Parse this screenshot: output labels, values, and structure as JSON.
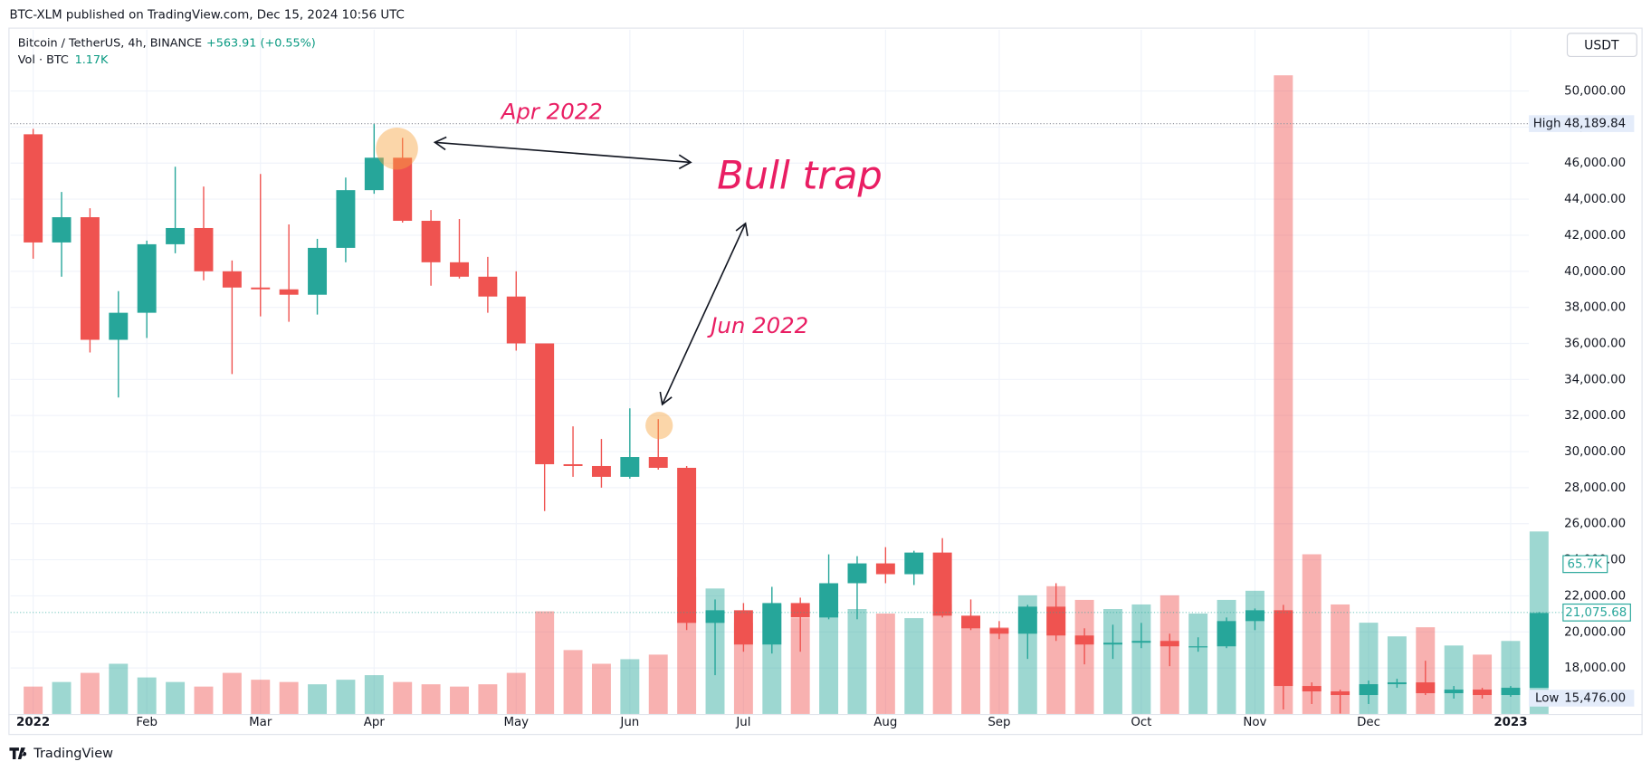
{
  "header": "BTC-XLM published on TradingView.com, Dec 15, 2024 10:56 UTC",
  "footer": "TradingView",
  "chart_data": {
    "type": "candlestick",
    "title": "Bitcoin / TetherUS, 4h, BINANCE",
    "change_label": "+563.91 (+0.55%)",
    "volume_title": "Vol · BTC",
    "volume_current": "1.17K",
    "currency": "USDT",
    "annotations": [
      "Apr 2022",
      "Bull trap",
      "Jun 2022"
    ],
    "categories": [
      "2022",
      null,
      null,
      null,
      "Feb",
      null,
      null,
      null,
      "Mar",
      null,
      null,
      null,
      "Apr",
      null,
      null,
      null,
      null,
      "May",
      null,
      null,
      null,
      "Jun",
      null,
      null,
      null,
      "Jul",
      null,
      null,
      null,
      null,
      "Aug",
      null,
      null,
      null,
      "Sep",
      null,
      null,
      null,
      null,
      "Oct",
      null,
      null,
      null,
      "Nov",
      null,
      null,
      null,
      "Dec",
      null,
      null,
      null,
      null,
      "2023",
      null
    ],
    "open": [
      47600,
      41600,
      43000,
      36200,
      37700,
      41500,
      42400,
      40000,
      39100,
      39000,
      38700,
      41300,
      44500,
      46300,
      42800,
      40500,
      39700,
      38600,
      36000,
      29300,
      29200,
      28600,
      29700,
      29100,
      20500,
      21200,
      19300,
      21600,
      20800,
      22700,
      23800,
      23200,
      24400,
      20900,
      20200,
      19900,
      21400,
      19800,
      19300,
      19400,
      19500,
      19200,
      19200,
      20600,
      21200,
      17000,
      16700,
      16500,
      17100,
      17200,
      16600,
      16800,
      16500,
      16900
    ],
    "high": [
      47900,
      44400,
      43500,
      38900,
      41700,
      45800,
      44700,
      40600,
      45400,
      42600,
      41800,
      45200,
      48190,
      47400,
      43400,
      42900,
      40800,
      40000,
      36000,
      31400,
      30700,
      32400,
      31800,
      29200,
      21800,
      21600,
      22500,
      21900,
      24300,
      24200,
      24700,
      24500,
      25200,
      21800,
      20600,
      21500,
      22700,
      20200,
      20400,
      20500,
      19900,
      19700,
      20800,
      21300,
      21500,
      17200,
      16800,
      17300,
      17400,
      18400,
      17000,
      16900,
      17000,
      21100
    ],
    "low": [
      40700,
      39700,
      35500,
      33000,
      36300,
      41000,
      39500,
      34300,
      37500,
      37200,
      37600,
      40500,
      44300,
      42700,
      39200,
      39600,
      37700,
      35600,
      26700,
      28600,
      28000,
      28500,
      29000,
      20100,
      17600,
      18900,
      18800,
      18900,
      20700,
      20700,
      22700,
      22600,
      20800,
      20100,
      19600,
      18500,
      19500,
      18200,
      18500,
      19100,
      18100,
      18900,
      19100,
      20100,
      15700,
      16000,
      15476,
      16000,
      16900,
      16500,
      16300,
      16300,
      16400,
      16900
    ],
    "close": [
      41600,
      43000,
      36200,
      37700,
      41500,
      42400,
      40000,
      39100,
      39000,
      38700,
      41300,
      44500,
      46300,
      42800,
      40500,
      39700,
      38600,
      36000,
      29300,
      29200,
      28600,
      29700,
      29100,
      20500,
      21200,
      19300,
      21600,
      20800,
      22700,
      23800,
      23200,
      24400,
      20900,
      20200,
      19900,
      21400,
      19800,
      19300,
      19400,
      19500,
      19200,
      19200,
      20600,
      21200,
      17000,
      16700,
      16500,
      17100,
      17200,
      16600,
      16800,
      16500,
      16900,
      21050
    ],
    "volume": [
      12,
      14,
      18,
      22,
      16,
      14,
      12,
      18,
      15,
      14,
      13,
      15,
      17,
      14,
      13,
      12,
      13,
      18,
      45,
      28,
      22,
      24,
      26,
      60,
      55,
      40,
      48,
      42,
      50,
      46,
      44,
      42,
      48,
      40,
      38,
      52,
      56,
      50,
      46,
      48,
      52,
      44,
      50,
      54,
      280,
      70,
      48,
      40,
      34,
      38,
      30,
      26,
      32,
      80
    ],
    "up_color": "#26a69a",
    "down_color": "#ef5350",
    "ylim": [
      15450,
      53400
    ],
    "yticks": [
      {
        "value": 18000,
        "label": "18,000.00"
      },
      {
        "value": 20000,
        "label": "20,000.00"
      },
      {
        "value": 22000,
        "label": "22,000.00"
      },
      {
        "value": 24000,
        "label": "24,000.00"
      },
      {
        "value": 26000,
        "label": "26,000.00"
      },
      {
        "value": 28000,
        "label": "28,000.00"
      },
      {
        "value": 30000,
        "label": "30,000.00"
      },
      {
        "value": 32000,
        "label": "32,000.00"
      },
      {
        "value": 34000,
        "label": "34,000.00"
      },
      {
        "value": 36000,
        "label": "36,000.00"
      },
      {
        "value": 38000,
        "label": "38,000.00"
      },
      {
        "value": 40000,
        "label": "40,000.00"
      },
      {
        "value": 42000,
        "label": "42,000.00"
      },
      {
        "value": 44000,
        "label": "44,000.00"
      },
      {
        "value": 46000,
        "label": "46,000.00"
      },
      {
        "value": 48000,
        "label": "48,000.00"
      },
      {
        "value": 50000,
        "label": "50,000.00"
      }
    ],
    "vlim": [
      0,
      300
    ],
    "grid": true,
    "high_marker": {
      "text": "High",
      "price": {
        "value": 48189.84,
        "label": "48,189.84"
      }
    },
    "low_marker": {
      "text": "Low",
      "price": {
        "value": 15476,
        "label": "15,476.00"
      }
    },
    "last_price": {
      "value": 21075.68,
      "label": "21,075.68"
    },
    "last_volume": {
      "value": 65.7,
      "label": "65.7K"
    }
  }
}
